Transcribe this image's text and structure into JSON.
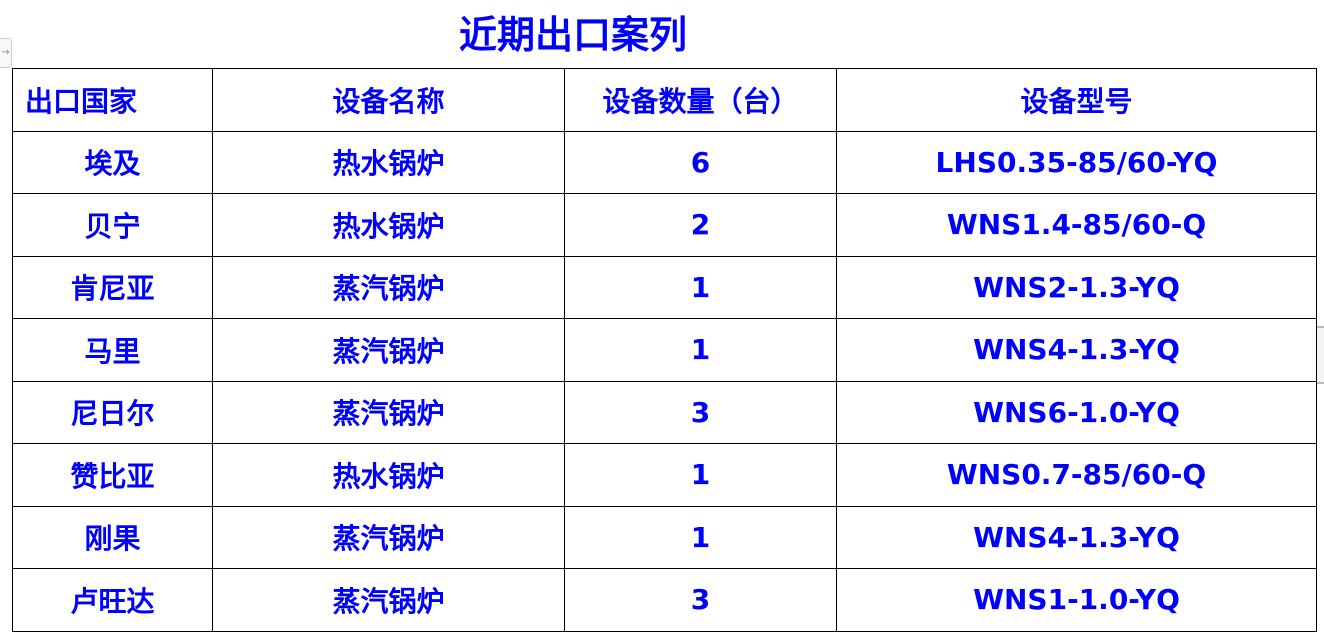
{
  "title": "近期出口案列",
  "table": {
    "headers": [
      "出口国家",
      "设备名称",
      "设备数量（台）",
      "设备型号"
    ],
    "rows": [
      [
        "埃及",
        "热水锅炉",
        "6",
        "LHS0.35-85/60-YQ"
      ],
      [
        "贝宁",
        "热水锅炉",
        "2",
        "WNS1.4-85/60-Q"
      ],
      [
        "肯尼亚",
        "蒸汽锅炉",
        "1",
        "WNS2-1.3-YQ"
      ],
      [
        "马里",
        "蒸汽锅炉",
        "1",
        "WNS4-1.3-YQ"
      ],
      [
        "尼日尔",
        "蒸汽锅炉",
        "3",
        "WNS6-1.0-YQ"
      ],
      [
        "赞比亚",
        "热水锅炉",
        "1",
        "WNS0.7-85/60-Q"
      ],
      [
        "刚果",
        "蒸汽锅炉",
        "1",
        "WNS4-1.3-YQ"
      ],
      [
        "卢旺达",
        "蒸汽锅炉",
        "3",
        "WNS1-1.0-YQ"
      ]
    ]
  },
  "colors": {
    "text": "#0000ff",
    "border": "#000000"
  }
}
